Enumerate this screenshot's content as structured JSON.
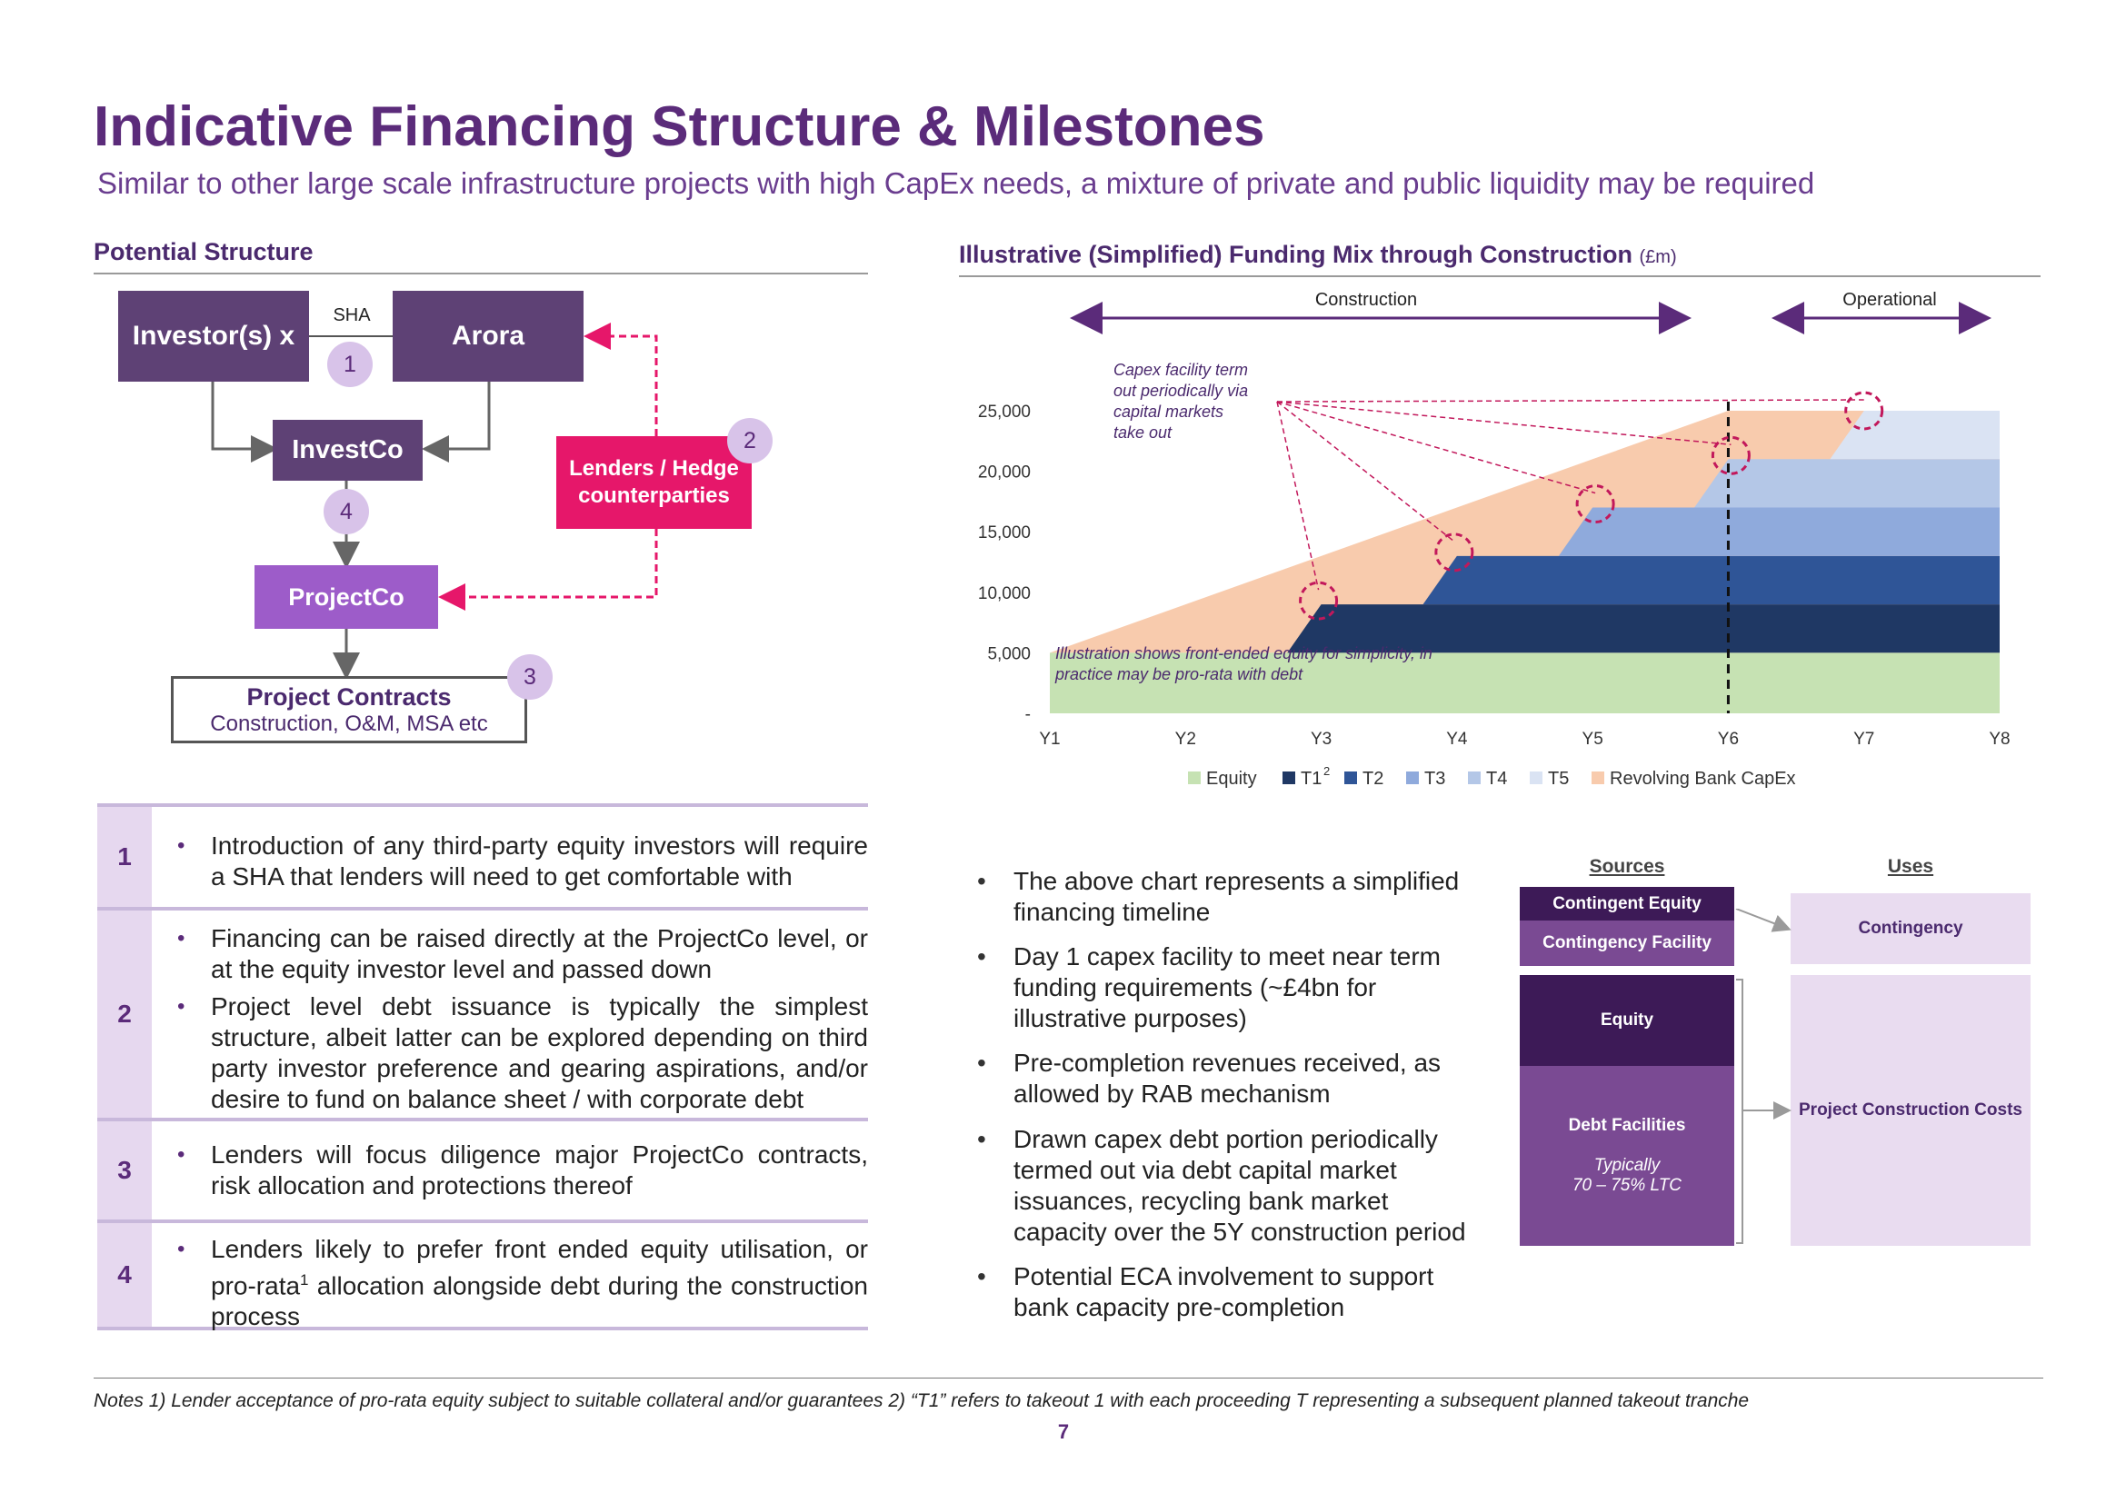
{
  "header": {
    "title": "Indicative Financing Structure & Milestones",
    "subtitle": "Similar to other large scale infrastructure projects with high CapEx needs, a mixture of private and public liquidity may be required"
  },
  "left": {
    "heading": "Potential Structure",
    "diagram": {
      "investor": "Investor(s) x",
      "sha": "SHA",
      "arora": "Arora",
      "investco": "InvestCo",
      "projectco": "ProjectCo",
      "lenders": "Lenders / Hedge counterparties",
      "contracts_title": "Project Contracts",
      "contracts_sub": "Construction, O&M, MSA etc",
      "c1": "1",
      "c2": "2",
      "c3": "3",
      "c4": "4"
    },
    "rows": [
      {
        "num": "1",
        "bullets": [
          "Introduction of any third-party equity investors will require a SHA that lenders will need to get comfortable with"
        ]
      },
      {
        "num": "2",
        "bullets": [
          "Financing can be raised directly at the ProjectCo level, or at the equity investor level and passed down",
          "Project level debt issuance is typically the simplest structure, albeit latter can be explored depending on third party investor preference and gearing aspirations, and/or desire to fund on balance sheet / with corporate debt"
        ]
      },
      {
        "num": "3",
        "bullets": [
          "Lenders will focus diligence major ProjectCo contracts, risk allocation and protections thereof"
        ]
      },
      {
        "num": "4",
        "bullets": [
          "Lenders likely to prefer front ended equity utilisation, or pro-rata"
        ],
        "row4_tail": "allocation alongside debt during the construction process",
        "sup": "1"
      }
    ]
  },
  "chart_data": {
    "type": "area",
    "title": "Illustrative (Simplified) Funding Mix through Construction",
    "unit": "(£m)",
    "x": [
      "Y1",
      "Y2",
      "Y3",
      "Y4",
      "Y5",
      "Y6",
      "Y7",
      "Y8"
    ],
    "ylim": [
      0,
      25000
    ],
    "yticks": [
      "-",
      "5,000",
      "10,000",
      "15,000",
      "20,000",
      "25,000"
    ],
    "phases": {
      "construction": "Construction",
      "operational": "Operational"
    },
    "annotations": {
      "capex_note": [
        "Capex facility term",
        "out periodically via",
        "capital markets",
        "take out"
      ],
      "equity_note": [
        "Illustration shows front-ended equity for simplicity, in",
        "practice may be pro-rata with debt"
      ]
    },
    "legend": [
      {
        "name": "Equity",
        "color": "#c6e2b3"
      },
      {
        "name": "T1",
        "sup": "2",
        "color": "#1f3864"
      },
      {
        "name": "T2",
        "color": "#2f5597"
      },
      {
        "name": "T3",
        "color": "#8faadc"
      },
      {
        "name": "T4",
        "color": "#b4c7e7"
      },
      {
        "name": "T5",
        "color": "#dae3f3"
      },
      {
        "name": "Revolving Bank CapEx",
        "color": "#f8cbad"
      }
    ],
    "series": {
      "equity": [
        5000,
        5000,
        5000,
        5000,
        5000,
        5000,
        5000,
        5000
      ],
      "total": [
        5000,
        9000,
        13000,
        17000,
        21000,
        25000,
        25000,
        25000
      ]
    },
    "tranches": [
      {
        "name": "T1",
        "start": 1.75,
        "bottom": 5000,
        "top": 9000
      },
      {
        "name": "T2",
        "start": 2.75,
        "bottom": 9000,
        "top": 13000
      },
      {
        "name": "T3",
        "start": 3.75,
        "bottom": 13000,
        "top": 17000
      },
      {
        "name": "T4",
        "start": 4.75,
        "bottom": 17000,
        "top": 21000
      },
      {
        "name": "T5",
        "start": 5.75,
        "bottom": 21000,
        "top": 25000
      }
    ],
    "takeout_points": [
      [
        1.98,
        9300
      ],
      [
        2.98,
        13300
      ],
      [
        4.02,
        17300
      ],
      [
        5.02,
        21300
      ],
      [
        6.0,
        25000
      ]
    ],
    "operational_start": "Y6"
  },
  "right_bullets": [
    "The above chart represents a simplified financing timeline",
    "Day 1 capex facility to meet near term funding requirements (~£4bn for illustrative purposes)",
    "Pre-completion revenues received, as allowed by RAB mechanism",
    "Drawn capex debt portion periodically termed out via debt capital market issuances, recycling bank market capacity over the 5Y construction period",
    "Potential ECA involvement to support bank capacity pre-completion"
  ],
  "sources_uses": {
    "sources_label": "Sources",
    "uses_label": "Uses",
    "contingent_equity": "Contingent Equity",
    "contingency_facility": "Contingency Facility",
    "equity": "Equity",
    "debt_facilities": "Debt Facilities",
    "typically": "Typically",
    "ltc": "70 – 75% LTC",
    "contingency": "Contingency",
    "project_costs": "Project Construction Costs"
  },
  "footer": {
    "notes": "Notes 1) Lender acceptance of pro-rata equity subject to suitable collateral and/or guarantees 2) “T1” refers to takeout 1 with each proceeding T representing a subsequent planned takeout tranche",
    "page": "7"
  }
}
